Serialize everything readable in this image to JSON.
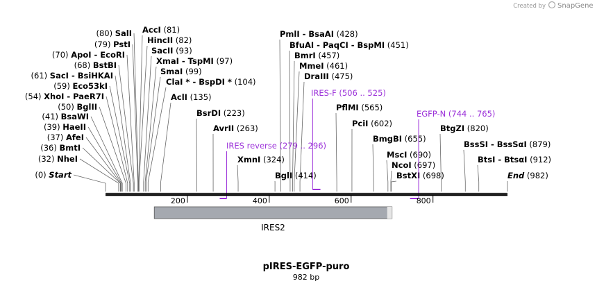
{
  "brand": {
    "created_by": "Created by",
    "name": "SnapGene"
  },
  "map": {
    "title": "pIRES-EGFP-puro",
    "length_label": "982 bp",
    "total_length": 982,
    "ticks": [
      {
        "value": 200,
        "label": "200"
      },
      {
        "value": 400,
        "label": "400"
      },
      {
        "value": 600,
        "label": "600"
      },
      {
        "value": 800,
        "label": "800"
      }
    ],
    "feature": {
      "name": "IRES2",
      "start": 114,
      "end": 700
    }
  },
  "left_sites": [
    {
      "pos": 0,
      "pos_label": "(0)",
      "name": "Start",
      "italic": true,
      "name2": ""
    },
    {
      "pos": 32,
      "pos_label": "(32)",
      "name": "NheI",
      "italic": false,
      "name2": ""
    },
    {
      "pos": 36,
      "pos_label": "(36)",
      "name": "BmtI",
      "italic": false,
      "name2": ""
    },
    {
      "pos": 37,
      "pos_label": "(37)",
      "name": "AfeI",
      "italic": false,
      "name2": ""
    },
    {
      "pos": 39,
      "pos_label": "(39)",
      "name": "HaeII",
      "italic": false,
      "name2": ""
    },
    {
      "pos": 41,
      "pos_label": "(41)",
      "name": "BsaWI",
      "italic": false,
      "name2": ""
    },
    {
      "pos": 50,
      "pos_label": "(50)",
      "name": "BglII",
      "italic": false,
      "name2": ""
    },
    {
      "pos": 54,
      "pos_label": "(54)",
      "name": "XhoI",
      "italic": false,
      "name2": "PaeR7I"
    },
    {
      "pos": 59,
      "pos_label": "(59)",
      "name": "Eco53kI",
      "italic": false,
      "name2": ""
    },
    {
      "pos": 61,
      "pos_label": "(61)",
      "name": "SacI",
      "italic": false,
      "name2": "BsiHKAI"
    },
    {
      "pos": 68,
      "pos_label": "(68)",
      "name": "BstBI",
      "italic": false,
      "name2": ""
    },
    {
      "pos": 70,
      "pos_label": "(70)",
      "name": "ApoI",
      "italic": false,
      "name2": "EcoRI"
    },
    {
      "pos": 79,
      "pos_label": "(79)",
      "name": "PstI",
      "italic": false,
      "name2": ""
    },
    {
      "pos": 80,
      "pos_label": "(80)",
      "name": "SalI",
      "italic": false,
      "name2": ""
    }
  ],
  "right_sites": [
    {
      "pos": 81,
      "pos_label": "(81)",
      "name": "AccI",
      "name2": ""
    },
    {
      "pos": 82,
      "pos_label": "(82)",
      "name": "HincII",
      "name2": ""
    },
    {
      "pos": 93,
      "pos_label": "(93)",
      "name": "SacII",
      "name2": ""
    },
    {
      "pos": 97,
      "pos_label": "(97)",
      "name": "XmaI",
      "name2": "TspMI"
    },
    {
      "pos": 99,
      "pos_label": "(99)",
      "name": "SmaI",
      "name2": ""
    },
    {
      "pos": 104,
      "pos_label": "(104)",
      "name": "ClaI *",
      "name2": "BspDI *"
    },
    {
      "pos": 135,
      "pos_label": "(135)",
      "name": "AclI",
      "name2": ""
    },
    {
      "pos": 223,
      "pos_label": "(223)",
      "name": "BsrDI",
      "name2": ""
    },
    {
      "pos": 263,
      "pos_label": "(263)",
      "name": "AvrII",
      "name2": ""
    },
    {
      "pos": 324,
      "pos_label": "(324)",
      "name": "XmnI",
      "name2": ""
    },
    {
      "pos": 414,
      "pos_label": "(414)",
      "name": "BglI",
      "name2": ""
    },
    {
      "pos": 428,
      "pos_label": "(428)",
      "name": "PmlI",
      "name2": "BsaAI"
    },
    {
      "pos": 451,
      "pos_label": "(451)",
      "name": "BfuAI",
      "name2": "PaqCI - BspMI"
    },
    {
      "pos": 457,
      "pos_label": "(457)",
      "name": "BmrI",
      "name2": ""
    },
    {
      "pos": 461,
      "pos_label": "(461)",
      "name": "MmeI",
      "name2": ""
    },
    {
      "pos": 475,
      "pos_label": "(475)",
      "name": "DraIII",
      "name2": ""
    },
    {
      "pos": 565,
      "pos_label": "(565)",
      "name": "PflMI",
      "name2": ""
    },
    {
      "pos": 602,
      "pos_label": "(602)",
      "name": "PciI",
      "name2": ""
    },
    {
      "pos": 655,
      "pos_label": "(655)",
      "name": "BmgBI",
      "name2": ""
    },
    {
      "pos": 690,
      "pos_label": "(690)",
      "name": "MscI",
      "name2": ""
    },
    {
      "pos": 697,
      "pos_label": "(697)",
      "name": "NcoI",
      "name2": ""
    },
    {
      "pos": 698,
      "pos_label": "(698)",
      "name": "BstXI",
      "name2": ""
    },
    {
      "pos": 820,
      "pos_label": "(820)",
      "name": "BtgZI",
      "name2": ""
    },
    {
      "pos": 879,
      "pos_label": "(879)",
      "name": "BssSI",
      "name2": "BssSαI"
    },
    {
      "pos": 912,
      "pos_label": "(912)",
      "name": "BtsI",
      "name2": "BtsαI"
    },
    {
      "pos": 982,
      "pos_label": "(982)",
      "name": "End",
      "name2": ""
    }
  ],
  "primers": [
    {
      "name": "IRES reverse",
      "range": "(279 .. 296)",
      "start": 279,
      "end": 296,
      "strand": "reverse"
    },
    {
      "name": "IRES-F",
      "range": "(506 .. 525)",
      "start": 506,
      "end": 525,
      "strand": "forward"
    },
    {
      "name": "EGFP-N",
      "range": "(744 .. 765)",
      "start": 744,
      "end": 765,
      "strand": "reverse"
    }
  ],
  "colors": {
    "primer": "#9b30d9",
    "feature_fill": "#a5a9b0",
    "line": "#666666",
    "backbone": "#000000"
  }
}
